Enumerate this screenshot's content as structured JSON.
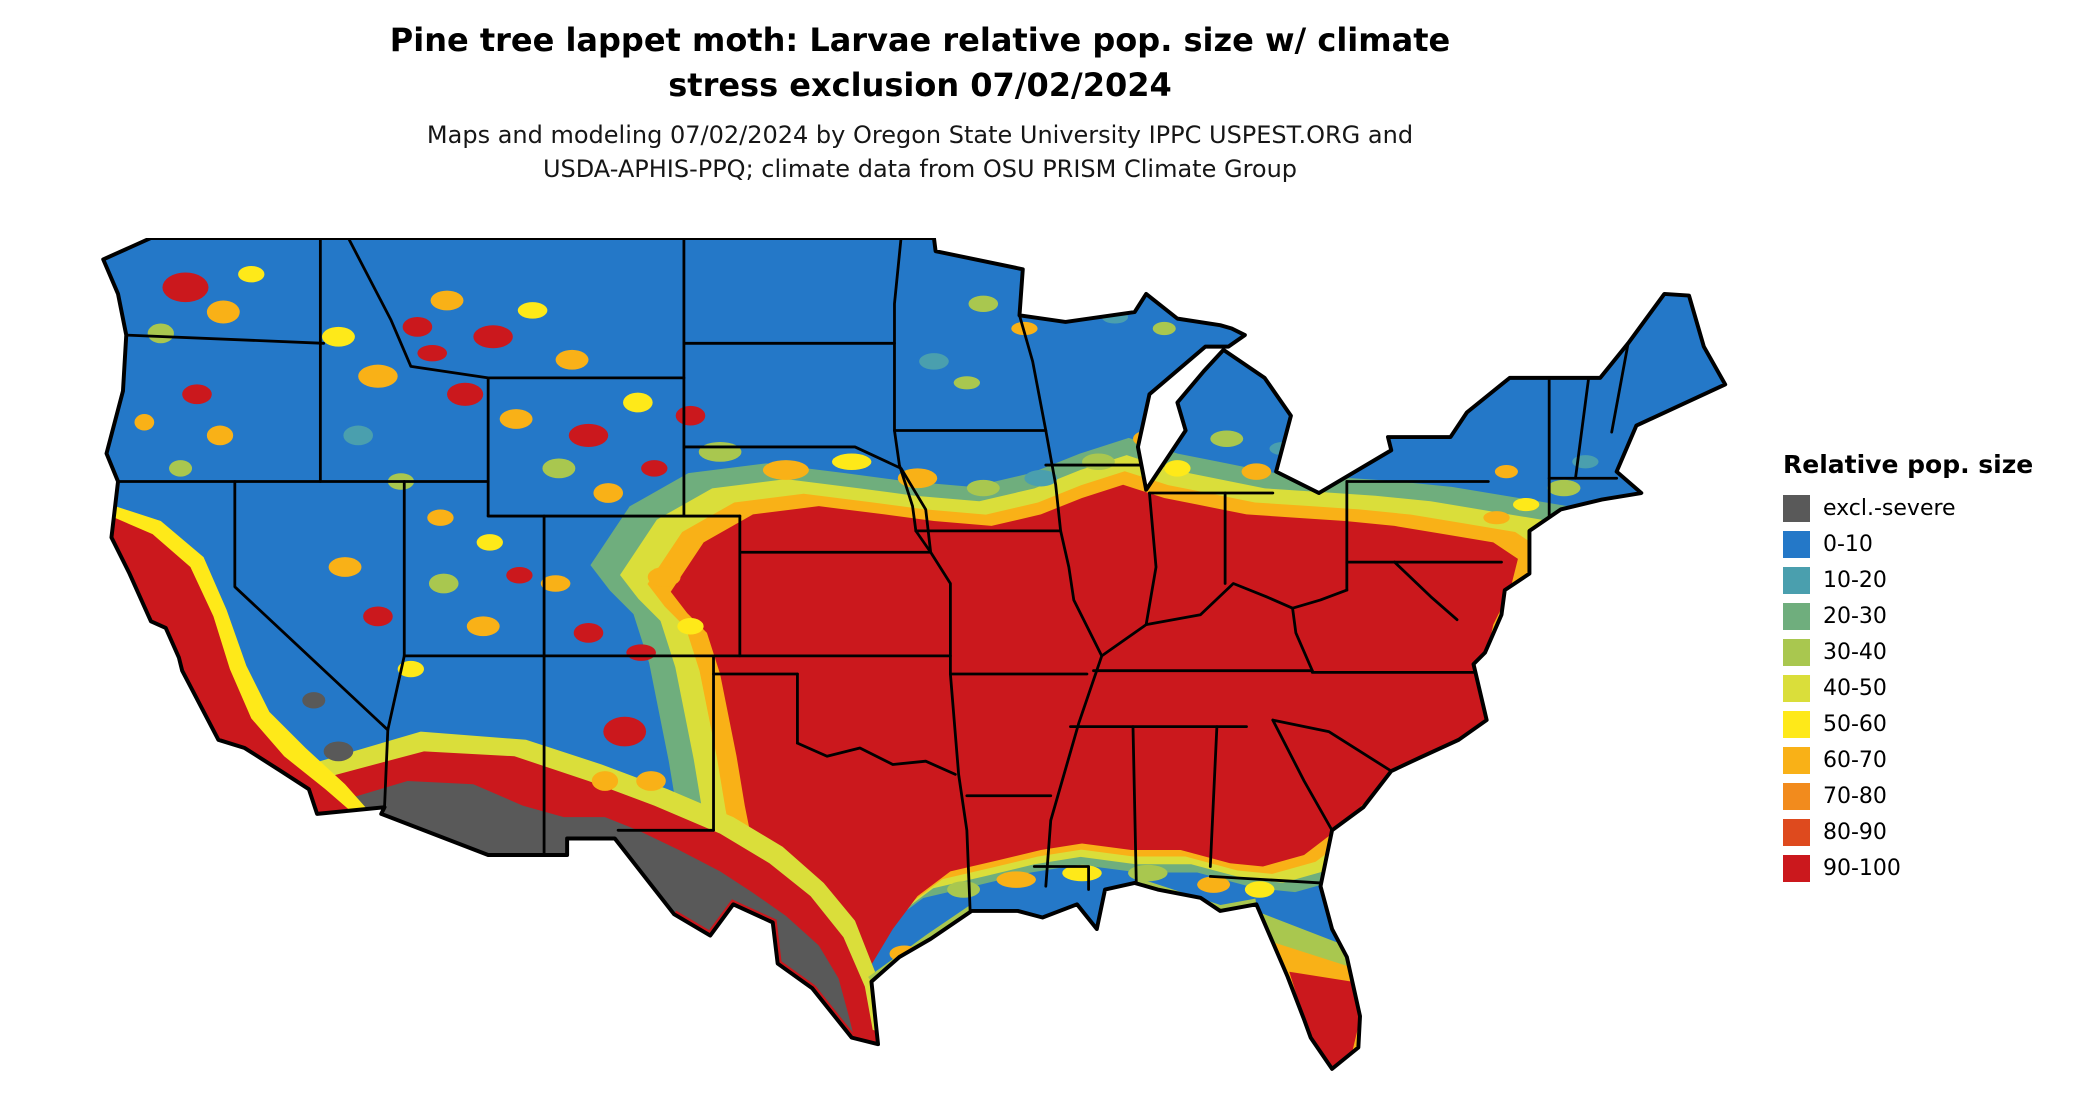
{
  "header": {
    "title_line1": "Pine tree lappet moth: Larvae relative pop. size w/ climate",
    "title_line2": "stress exclusion 07/02/2024",
    "subtitle_line1": "Maps and modeling 07/02/2024 by Oregon State University IPPC USPEST.ORG and",
    "subtitle_line2": "USDA-APHIS-PPQ; climate data from OSU PRISM Climate Group"
  },
  "legend": {
    "title": "Relative pop. size",
    "items": [
      {
        "label": "excl.-severe",
        "color": "#595959"
      },
      {
        "label": "0-10",
        "color": "#2478c8"
      },
      {
        "label": "10-20",
        "color": "#4a9fae"
      },
      {
        "label": "20-30",
        "color": "#6fae7d"
      },
      {
        "label": "30-40",
        "color": "#a9c74f"
      },
      {
        "label": "40-50",
        "color": "#dade3a"
      },
      {
        "label": "50-60",
        "color": "#fee919"
      },
      {
        "label": "60-70",
        "color": "#f9b117"
      },
      {
        "label": "70-80",
        "color": "#f28b1d"
      },
      {
        "label": "80-90",
        "color": "#de4a1e"
      },
      {
        "label": "90-100",
        "color": "#cb181d"
      }
    ]
  },
  "map": {
    "name": "continental-us-relative-population-map",
    "type": "raster-choropleth",
    "outline_color": "#000000",
    "background": "#ffffff",
    "description": "Continental US raster map: blue (0-10) across the northern tier, Pacific Northwest, mountain west and Gulf coastal strip; red (90-100) across the central/eastern US, California coast and Central Valley, and southern Florida; gray climate-stress exclusion over the desert Southwest, far west Texas and south Texas; yellow/orange transition bands between blue and red zones; black state borders."
  }
}
